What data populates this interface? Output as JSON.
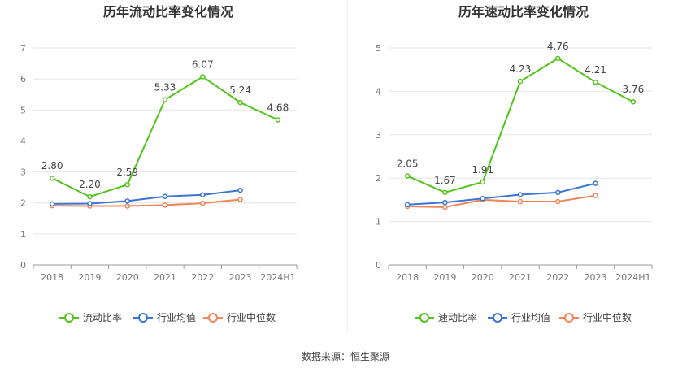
{
  "source_text": "数据来源：恒生聚源",
  "chart_data": [
    {
      "type": "line",
      "title": "历年流动比率变化情况",
      "categories": [
        "2018",
        "2019",
        "2020",
        "2021",
        "2022",
        "2023",
        "2024H1"
      ],
      "ylim": [
        0,
        7
      ],
      "yticks": [
        0,
        1,
        2,
        3,
        4,
        5,
        6,
        7
      ],
      "grid": true,
      "legend_position": "bottom",
      "series": [
        {
          "name": "流动比率",
          "color": "#52c41a",
          "values": [
            2.8,
            2.2,
            2.59,
            5.33,
            6.07,
            5.24,
            4.68
          ],
          "labels": [
            "2.80",
            "2.20",
            "2.59",
            "5.33",
            "6.07",
            "5.24",
            "4.68"
          ]
        },
        {
          "name": "行业均值",
          "color": "#3a75d3",
          "values": [
            1.97,
            1.98,
            2.06,
            2.21,
            2.26,
            2.41,
            null
          ]
        },
        {
          "name": "行业中位数",
          "color": "#f0845a",
          "values": [
            1.91,
            1.9,
            1.9,
            1.93,
            1.99,
            2.11,
            null
          ]
        }
      ]
    },
    {
      "type": "line",
      "title": "历年速动比率变化情况",
      "categories": [
        "2018",
        "2019",
        "2020",
        "2021",
        "2022",
        "2023",
        "2024H1"
      ],
      "ylim": [
        0,
        5
      ],
      "yticks": [
        0,
        1,
        2,
        3,
        4,
        5
      ],
      "grid": true,
      "legend_position": "bottom",
      "series": [
        {
          "name": "速动比率",
          "color": "#52c41a",
          "values": [
            2.05,
            1.67,
            1.91,
            4.23,
            4.76,
            4.21,
            3.76
          ],
          "labels": [
            "2.05",
            "1.67",
            "1.91",
            "4.23",
            "4.76",
            "4.21",
            "3.76"
          ]
        },
        {
          "name": "行业均值",
          "color": "#3a75d3",
          "values": [
            1.39,
            1.44,
            1.53,
            1.62,
            1.67,
            1.88,
            null
          ]
        },
        {
          "name": "行业中位数",
          "color": "#f0845a",
          "values": [
            1.35,
            1.33,
            1.5,
            1.46,
            1.46,
            1.6,
            null
          ]
        }
      ]
    }
  ]
}
